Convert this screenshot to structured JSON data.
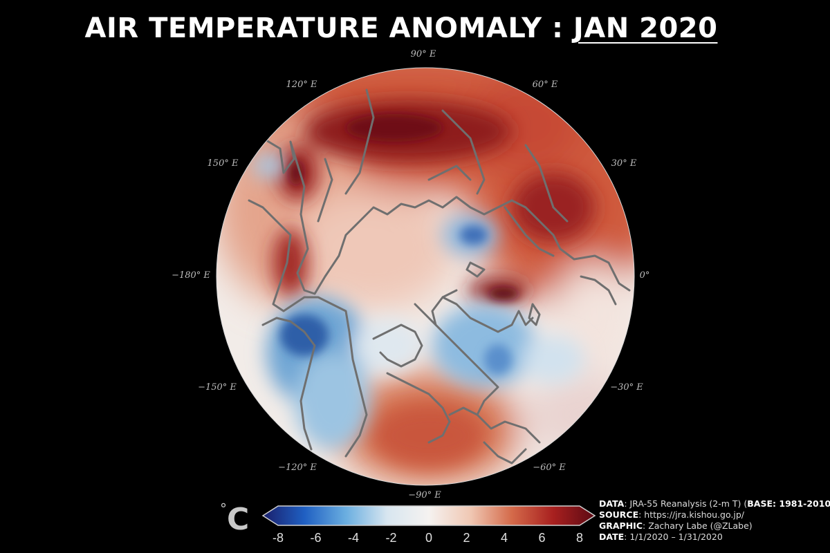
{
  "title": {
    "main": "AIR TEMPERATURE ANOMALY : ",
    "period": "JAN 2020"
  },
  "map": {
    "projection": "North Polar Stereographic",
    "longitude_labels": [
      "90° E",
      "120° E",
      "60° E",
      "150° E",
      "30° E",
      "−180° E",
      "0°",
      "−150° E",
      "−30° E",
      "−120° E",
      "−60° E",
      "−90° E"
    ]
  },
  "colorbar": {
    "unit_degree": "°",
    "unit_letter": "C",
    "ticks": [
      "-8",
      "-6",
      "-4",
      "-2",
      "0",
      "2",
      "4",
      "6",
      "8"
    ],
    "range": [
      -8,
      8
    ],
    "colors": [
      "#1a1f6b",
      "#1f5fc2",
      "#6aaee0",
      "#d8e6f0",
      "#f5f2f0",
      "#f0c8b4",
      "#d46a4a",
      "#a8201f",
      "#5c0a14"
    ]
  },
  "credits": {
    "data_label": "DATA",
    "data_text": ": JRA-55 Reanalysis (2-m T) (",
    "base_label": "BASE: 1981-2010",
    "data_close": ")",
    "source_label": "SOURCE",
    "source_text": ": https://jra.kishou.go.jp/",
    "graphic_label": "GRAPHIC",
    "graphic_text": ": Zachary Labe (@ZLabe)",
    "date_label": "DATE",
    "date_text": ": 1/1/2020 – 1/31/2020"
  }
}
